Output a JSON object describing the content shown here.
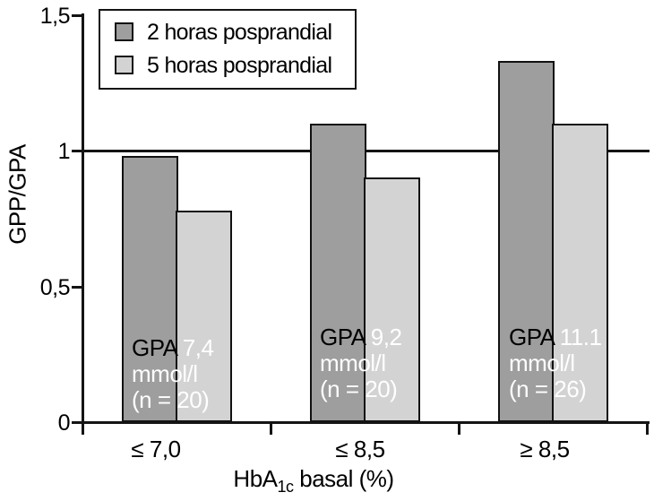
{
  "figure": {
    "background": "#ffffff",
    "axis_color": "#141414",
    "annotation_dark_text": "#000000",
    "annotation_light_text": "#ffffff"
  },
  "chart_data": {
    "type": "bar",
    "title": "",
    "categories": [
      "≤ 7,0",
      "≤ 8,5",
      "≥ 8,5"
    ],
    "series": [
      {
        "name": "2 horas posprandial",
        "color": "#9e9e9e",
        "values": [
          0.98,
          1.1,
          1.33
        ]
      },
      {
        "name": "5 horas posprandial",
        "color": "#d3d3d3",
        "values": [
          0.78,
          0.9,
          1.1
        ]
      }
    ],
    "ylabel": "GPP/GPA",
    "xlabel": {
      "base": "HbA",
      "sub": "1c",
      "rest": " basal (%)"
    },
    "ylim": [
      0,
      1.5
    ],
    "yticks": [
      {
        "label": "0",
        "value": 0
      },
      {
        "label": "0,5",
        "value": 0.5
      },
      {
        "label": "1",
        "value": 1
      },
      {
        "label": "1,5",
        "value": 1.5
      }
    ],
    "reference_line": 1,
    "grid": false,
    "legend_position": "top-left",
    "annotations": [
      {
        "prefix": "GPA",
        "value": "7,4",
        "unit": "mmol/l",
        "n": "(n = 20)"
      },
      {
        "prefix": "GPA",
        "value": "9,2",
        "unit": "mmol/l",
        "n": "(n = 20)"
      },
      {
        "prefix": "GPA",
        "value": "11.1",
        "unit": "mmol/l",
        "n": "(n = 26)"
      }
    ]
  }
}
